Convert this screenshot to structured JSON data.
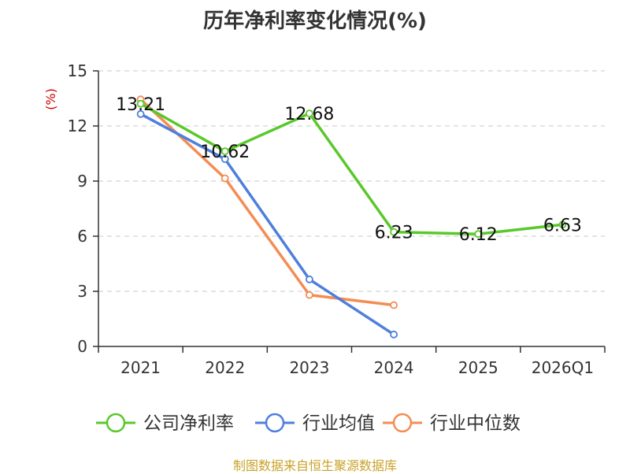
{
  "chart_data": {
    "type": "line",
    "title": "历年净利率变化情况(%)",
    "ylabel": "(%)",
    "xlabel": "",
    "ylim": [
      0,
      15
    ],
    "yticks": [
      0,
      3,
      6,
      9,
      12,
      15
    ],
    "grid": true,
    "categories": [
      "2021",
      "2022",
      "2023",
      "2024",
      "2025",
      "2026Q1"
    ],
    "series": [
      {
        "name": "公司净利率",
        "color": "#5ac82a",
        "values": [
          13.21,
          10.62,
          12.68,
          6.23,
          6.12,
          6.63
        ],
        "labels": [
          "13.21",
          "10.62",
          "12.68",
          "6.23",
          "6.12",
          "6.63"
        ]
      },
      {
        "name": "行业均值",
        "color": "#4f7fdc",
        "values": [
          12.65,
          10.2,
          3.65,
          0.65,
          null,
          null
        ]
      },
      {
        "name": "行业中位数",
        "color": "#f48c54",
        "values": [
          13.45,
          9.15,
          2.8,
          2.25,
          null,
          null
        ]
      }
    ],
    "legend_position": "bottom"
  },
  "source": "制图数据来自恒生聚源数据库"
}
